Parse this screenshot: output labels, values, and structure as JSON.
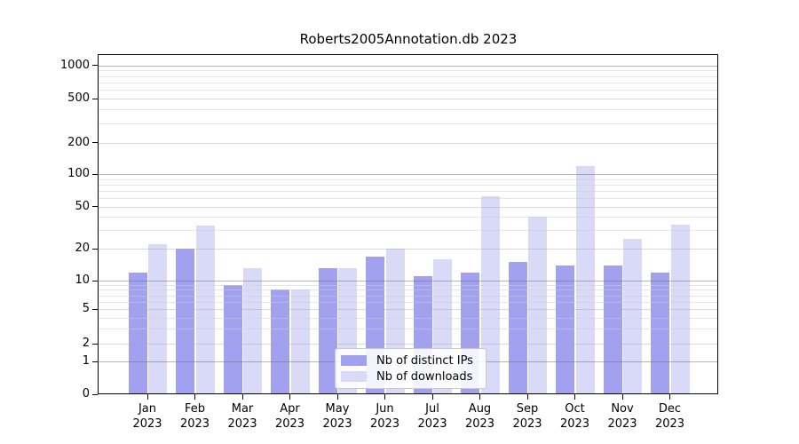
{
  "chart_data": {
    "type": "bar",
    "title": "Roberts2005Annotation.db 2023",
    "categories": [
      "Jan 2023",
      "Feb 2023",
      "Mar 2023",
      "Apr 2023",
      "May 2023",
      "Jun 2023",
      "Jul 2023",
      "Aug 2023",
      "Sep 2023",
      "Oct 2023",
      "Nov 2023",
      "Dec 2023"
    ],
    "x_tick_months": [
      "Jan",
      "Feb",
      "Mar",
      "Apr",
      "May",
      "Jun",
      "Jul",
      "Aug",
      "Sep",
      "Oct",
      "Nov",
      "Dec"
    ],
    "x_tick_year": "2023",
    "series": [
      {
        "name": "Nb of distinct IPs",
        "color": "#a1a1f0",
        "values": [
          12,
          20,
          9,
          8,
          13,
          17,
          11,
          12,
          15,
          14,
          14,
          12
        ]
      },
      {
        "name": "Nb of downloads",
        "color": "#d9d9f8",
        "values": [
          22,
          33,
          13,
          8,
          13,
          20,
          16,
          62,
          40,
          120,
          25,
          34
        ]
      }
    ],
    "xlabel": "",
    "ylabel": "",
    "yscale": "symlog-1-2-5",
    "ylim": [
      0,
      1300
    ],
    "ytick_values": [
      0,
      1,
      2,
      5,
      10,
      20,
      50,
      100,
      200,
      500,
      1000
    ],
    "grid": {
      "major": "on",
      "minor": "on"
    },
    "legend": {
      "position": "lower center"
    }
  },
  "colors": {
    "bar_distinct_ips": "#a1a1f0",
    "bar_downloads": "#d9d9f8",
    "grid_decade": "rgba(110,110,110,0.50)",
    "grid_mid": "rgba(170,170,170,0.45)",
    "grid_minor": "rgba(205,205,205,0.50)",
    "spine": "#000000",
    "background": "#ffffff"
  }
}
